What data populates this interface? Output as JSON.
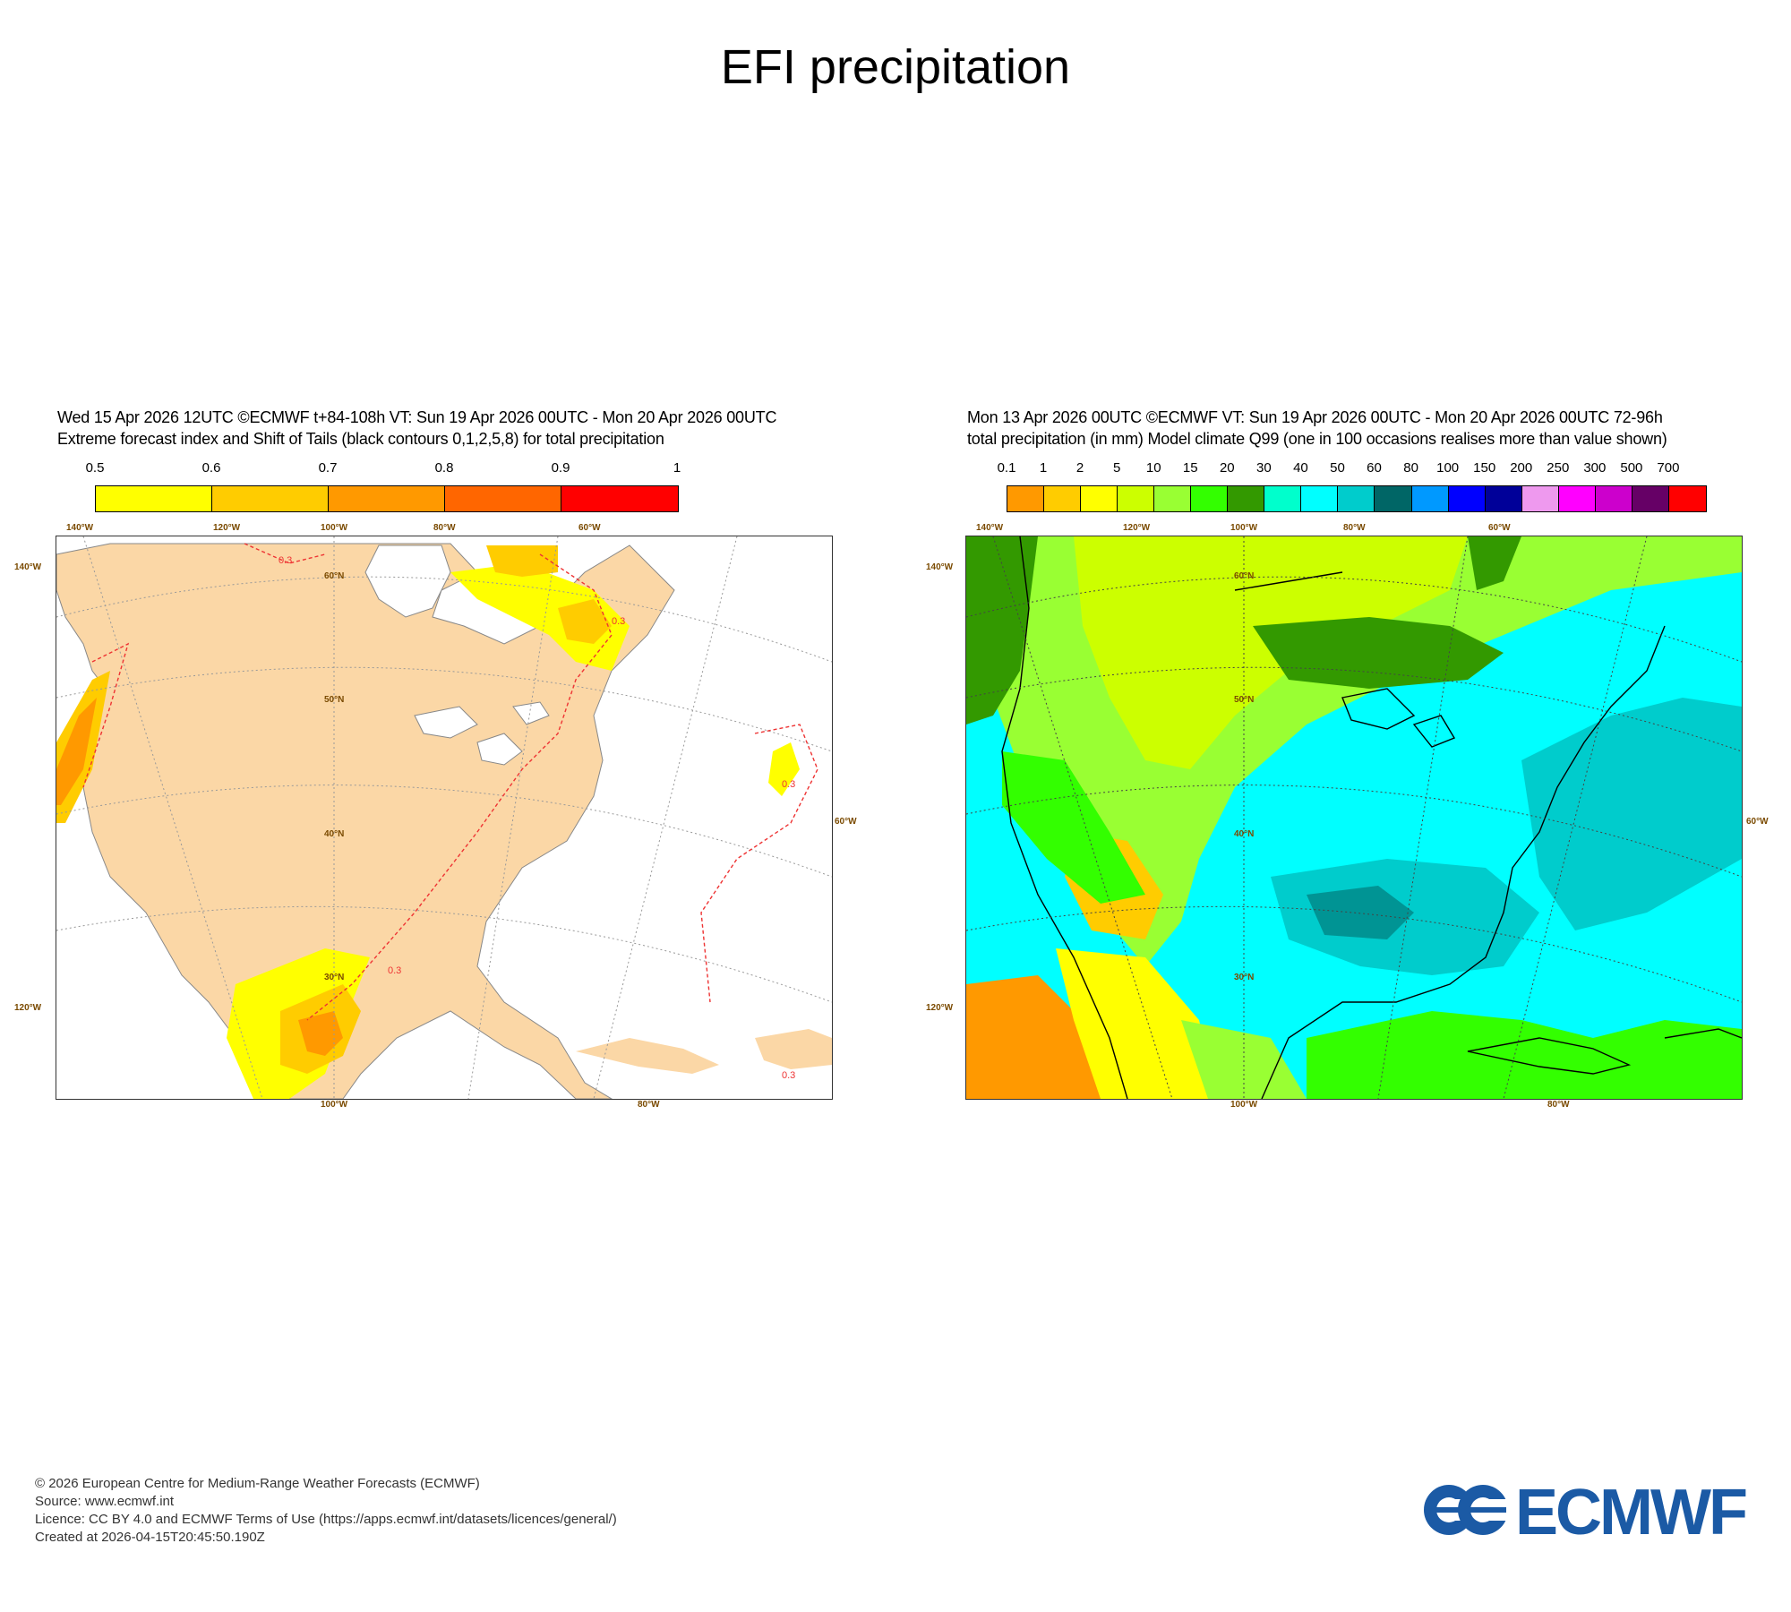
{
  "page_title": "EFI precipitation",
  "left_panel": {
    "header_line1": "Wed 15 Apr 2026 12UTC ©ECMWF t+84-108h  VT: Sun 19 Apr 2026 00UTC - Mon 20 Apr 2026 00UTC",
    "header_line2": "Extreme forecast index and Shift of Tails (black contours 0,1,2,5,8) for total precipitation",
    "colorbar_labels": [
      "0.5",
      "0.6",
      "0.7",
      "0.8",
      "0.9",
      "1"
    ],
    "colorbar_colors": [
      "#ffff00",
      "#ffcc00",
      "#ff9900",
      "#ff6600",
      "#ff0000"
    ],
    "lon_top": [
      "140°W",
      "120°W",
      "100°W",
      "80°W",
      "60°W"
    ],
    "lon_bottom": [
      "100°W",
      "80°W"
    ],
    "lat_labels": [
      "60°N",
      "50°N",
      "40°N",
      "30°N"
    ],
    "side_left": [
      "140°W",
      "120°W"
    ],
    "side_right": [
      "60°W"
    ],
    "contour_label": "0.3",
    "land_color": "#fbd7a6"
  },
  "right_panel": {
    "header_line1": "Mon 13 Apr 2026 00UTC ©ECMWF VT: Sun 19 Apr 2026 00UTC - Mon 20 Apr 2026 00UTC   72-96h",
    "header_line2": "total precipitation (in mm)  Model climate Q99 (one in 100 occasions realises more than value shown)",
    "colorbar_labels": [
      "0.1",
      "1",
      "2",
      "5",
      "10",
      "15",
      "20",
      "30",
      "40",
      "50",
      "60",
      "80",
      "100",
      "150",
      "200",
      "250",
      "300",
      "500",
      "700"
    ],
    "colorbar_colors": [
      "#ff9900",
      "#ffcc00",
      "#ffff00",
      "#ccff00",
      "#99ff33",
      "#33ff00",
      "#339900",
      "#00ffcc",
      "#00ffff",
      "#00cccc",
      "#006666",
      "#0099ff",
      "#0000ff",
      "#000099",
      "#ee99ee",
      "#ff00ff",
      "#cc00cc",
      "#660066",
      "#ff0000"
    ],
    "lon_top": [
      "140°W",
      "120°W",
      "100°W",
      "80°W",
      "60°W"
    ],
    "lon_bottom": [
      "100°W",
      "80°W"
    ],
    "lat_labels": [
      "60°N",
      "50°N",
      "40°N",
      "30°N"
    ],
    "side_left": [
      "140°W",
      "120°W"
    ],
    "side_right": [
      "60°W"
    ]
  },
  "footer": {
    "line1": "© 2026 European Centre for Medium-Range Weather Forecasts (ECMWF)",
    "line2": "Source: www.ecmwf.int",
    "line3": "Licence: CC BY 4.0 and ECMWF Terms of Use (https://apps.ecmwf.int/datasets/licences/general/)",
    "line4": "Created at 2026-04-15T20:45:50.190Z"
  },
  "logo": {
    "text": "ECMWF",
    "color": "#1b5aa5"
  }
}
